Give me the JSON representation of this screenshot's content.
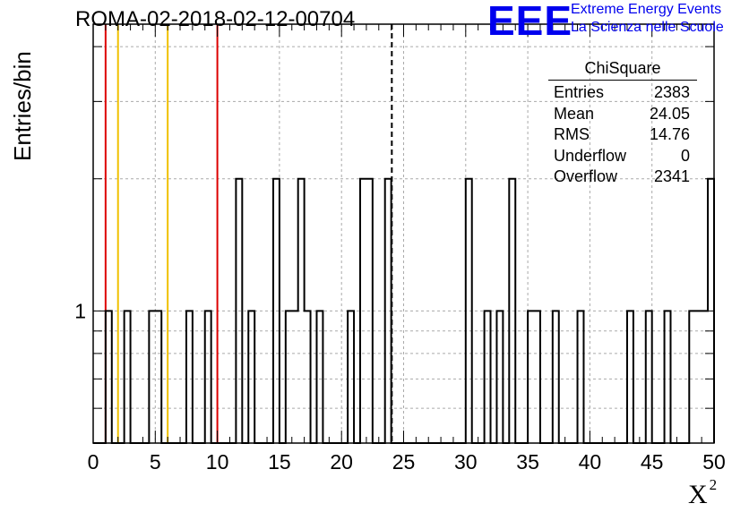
{
  "run_title": "ROMA-02-2018-02-12-00704",
  "logo": {
    "text": "EEE",
    "line1": "Extreme Energy Events",
    "line2": "La Scienza nelle Scuole",
    "color": "#0000ee"
  },
  "chart_data": {
    "type": "histogram",
    "xlabel": "X",
    "xlabel_sup": "2",
    "ylabel": "Entries/bin",
    "xlim": [
      0,
      50
    ],
    "y_scale": "log",
    "ylim": [
      0.5,
      4.5
    ],
    "y_tick_labels": [
      "1"
    ],
    "x_tick_labels": [
      "0",
      "5",
      "10",
      "15",
      "20",
      "25",
      "30",
      "35",
      "40",
      "45",
      "50"
    ],
    "grid": true,
    "bin_width": 0.5,
    "bins": [
      {
        "x": 1.0,
        "y": 1
      },
      {
        "x": 2.5,
        "y": 1
      },
      {
        "x": 4.5,
        "y": 1
      },
      {
        "x": 5.0,
        "y": 1
      },
      {
        "x": 7.5,
        "y": 1
      },
      {
        "x": 9.0,
        "y": 1
      },
      {
        "x": 11.5,
        "y": 2
      },
      {
        "x": 12.5,
        "y": 1
      },
      {
        "x": 14.5,
        "y": 2
      },
      {
        "x": 15.5,
        "y": 1
      },
      {
        "x": 16.0,
        "y": 1
      },
      {
        "x": 16.5,
        "y": 2
      },
      {
        "x": 17.0,
        "y": 1
      },
      {
        "x": 18.0,
        "y": 1
      },
      {
        "x": 20.5,
        "y": 1
      },
      {
        "x": 21.5,
        "y": 2
      },
      {
        "x": 22.0,
        "y": 2
      },
      {
        "x": 23.5,
        "y": 2
      },
      {
        "x": 30.0,
        "y": 2
      },
      {
        "x": 31.5,
        "y": 1
      },
      {
        "x": 32.5,
        "y": 1
      },
      {
        "x": 33.5,
        "y": 2
      },
      {
        "x": 35.0,
        "y": 1
      },
      {
        "x": 35.5,
        "y": 1
      },
      {
        "x": 37.0,
        "y": 1
      },
      {
        "x": 39.0,
        "y": 1
      },
      {
        "x": 43.0,
        "y": 1
      },
      {
        "x": 44.5,
        "y": 1
      },
      {
        "x": 46.0,
        "y": 1
      },
      {
        "x": 48.0,
        "y": 1
      },
      {
        "x": 48.5,
        "y": 1
      },
      {
        "x": 49.0,
        "y": 1
      },
      {
        "x": 49.5,
        "y": 2
      }
    ],
    "reference_lines": [
      {
        "x": 1,
        "color": "#dd0000"
      },
      {
        "x": 2,
        "color": "#f0c000"
      },
      {
        "x": 6,
        "color": "#f0c000"
      },
      {
        "x": 10,
        "color": "#dd0000"
      }
    ],
    "mean_line": {
      "x": 24.05,
      "style": "dashed",
      "color": "#000000"
    }
  },
  "stats": {
    "title": "ChiSquare",
    "rows": [
      {
        "label": "Entries",
        "value": "2383"
      },
      {
        "label": "Mean",
        "value": "24.05"
      },
      {
        "label": "RMS",
        "value": "14.76"
      },
      {
        "label": "Underflow",
        "value": "0"
      },
      {
        "label": "Overflow",
        "value": "2341"
      }
    ]
  }
}
